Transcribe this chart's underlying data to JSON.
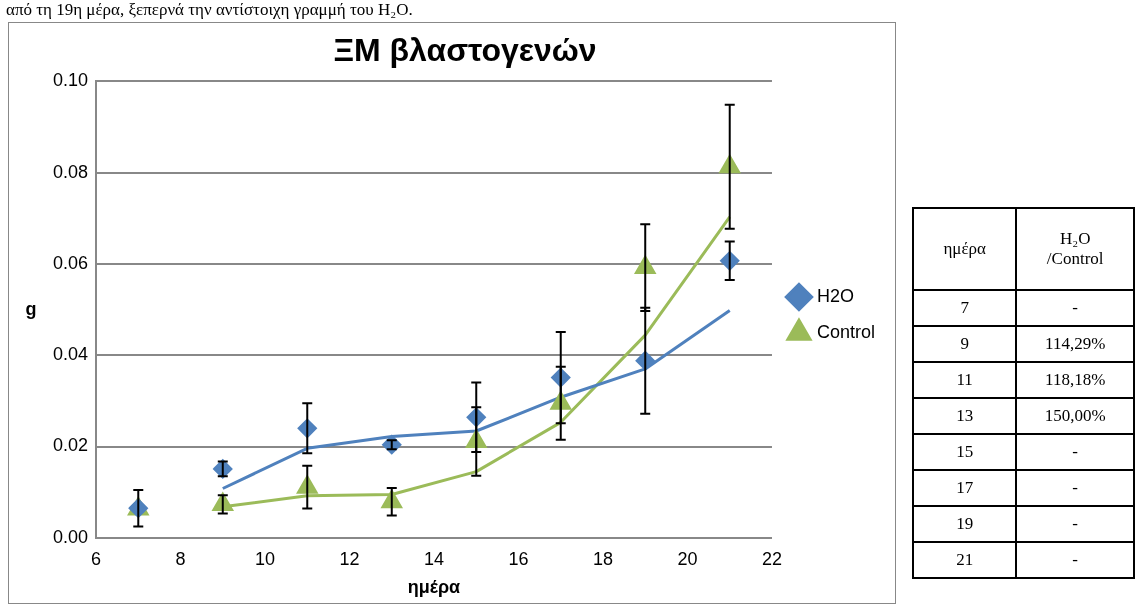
{
  "chart_data": [
    {
      "type": "scatter",
      "title": "ΞΜ βλαστογενών",
      "xlabel": "ημέρα",
      "ylabel": "g",
      "annotations": [
        "από τη 19η μέρα, ξεπερνά την αντίστοιχη γραμμή του H₂O."
      ],
      "xlim": [
        6,
        22
      ],
      "xticks": [
        6,
        8,
        10,
        12,
        14,
        16,
        18,
        20,
        22
      ],
      "ylim": [
        0,
        0.1
      ],
      "yticks": [
        {
          "value": 0,
          "label": "0.00"
        },
        {
          "value": 0.02,
          "label": "0.02"
        },
        {
          "value": 0.04,
          "label": "0.04"
        },
        {
          "value": 0.06,
          "label": "0.06"
        },
        {
          "value": 0.08,
          "label": "0.08"
        },
        {
          "value": 0.1,
          "label": "0.10"
        }
      ],
      "grid": "y",
      "legend": "right",
      "series": [
        {
          "name": "H2O",
          "color": "#4f81bd",
          "marker": "diamond",
          "x": [
            7,
            9,
            11,
            13,
            15,
            17,
            19,
            21
          ],
          "values": [
            0.0065,
            0.0151,
            0.024,
            0.0204,
            0.0264,
            0.0351,
            0.0388,
            0.0607
          ],
          "errors": [
            0.004,
            0.0016,
            0.0055,
            0.001,
            0.0076,
            0.01,
            0.0116,
            0.0042
          ]
        },
        {
          "name": "Control",
          "color": "#9bbb59",
          "marker": "triangle",
          "x": [
            7,
            9,
            11,
            13,
            15,
            17,
            19,
            21
          ],
          "values": [
            0.0063,
            0.0073,
            0.0111,
            0.0079,
            0.0211,
            0.0295,
            0.0592,
            0.0813
          ],
          "errors": [
            null,
            0.002,
            0.0047,
            0.003,
            0.0075,
            0.008,
            0.0095,
            0.0136
          ]
        },
        {
          "type": "line",
          "color": "#4f81bd",
          "marker": "none",
          "x": [
            9,
            11,
            13,
            15,
            17,
            19,
            21
          ],
          "values": [
            0.0108,
            0.0196,
            0.0222,
            0.0234,
            0.0308,
            0.037,
            0.0498
          ]
        },
        {
          "type": "line",
          "color": "#9bbb59",
          "marker": "none",
          "x": [
            9,
            11,
            13,
            15,
            17,
            19,
            21
          ],
          "values": [
            0.0068,
            0.0092,
            0.0095,
            0.0145,
            0.0253,
            0.0444,
            0.0703
          ]
        }
      ]
    },
    {
      "type": "heatmap",
      "ylabel": "ημέρα",
      "categories": [
        "H₂O /Control"
      ],
      "y_categories": [
        "7",
        "9",
        "11",
        "13",
        "15",
        "17",
        "19",
        "21"
      ],
      "cells": [
        [
          null
        ],
        [
          null
        ],
        [
          null
        ],
        [
          null
        ],
        [
          null
        ],
        [
          null
        ],
        [
          null
        ],
        [
          null
        ]
      ],
      "cell_labels": [
        [
          "-"
        ],
        [
          "114,29%"
        ],
        [
          "118,18%"
        ],
        [
          "150,00%"
        ],
        [
          "-"
        ],
        [
          "-"
        ],
        [
          "-"
        ],
        [
          "-"
        ]
      ]
    }
  ]
}
